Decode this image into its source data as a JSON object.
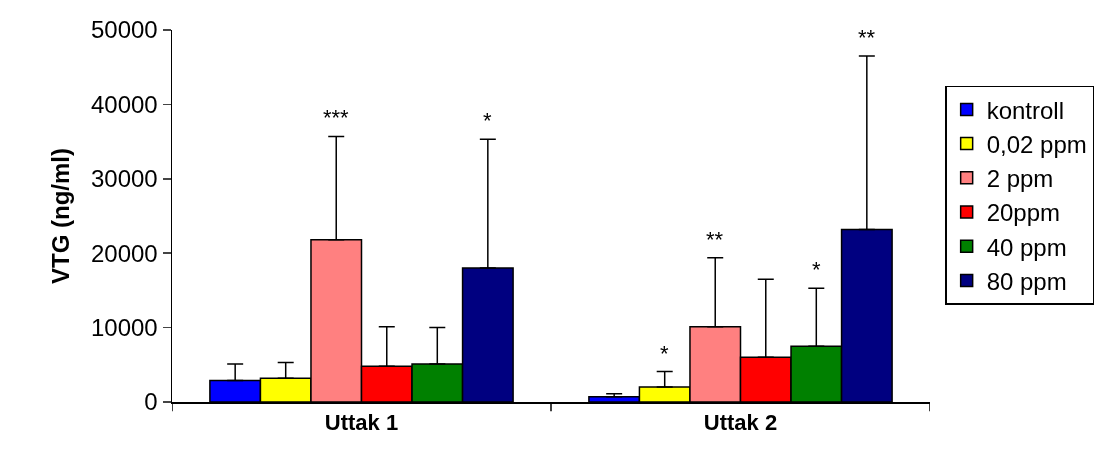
{
  "chart_data": {
    "type": "bar",
    "ylabel": "VTG (ng/ml)",
    "categories": [
      "Uttak 1",
      "Uttak 2"
    ],
    "ylim": [
      0,
      50000
    ],
    "yticks": [
      0,
      10000,
      20000,
      30000,
      40000,
      50000
    ],
    "grid": false,
    "legend": "right",
    "annotations": [
      "***",
      "*",
      "*",
      "**",
      "*",
      "**"
    ],
    "series": [
      {
        "name": "kontroll",
        "color": "#0000ff",
        "values": [
          2900,
          700
        ],
        "errors": [
          [
            2900,
            5100
          ],
          [
            700,
            1100
          ]
        ]
      },
      {
        "name": "0,02 ppm",
        "color": "#ffff00",
        "values": [
          3200,
          2000
        ],
        "errors": [
          [
            3200,
            5300
          ],
          [
            2000,
            4100
          ]
        ]
      },
      {
        "name": "2 ppm",
        "color": "#ff8080",
        "values": [
          21800,
          10100
        ],
        "errors": [
          [
            21800,
            35700
          ],
          [
            10100,
            19400
          ]
        ]
      },
      {
        "name": "20ppm",
        "color": "#ff0000",
        "values": [
          4800,
          6000
        ],
        "errors": [
          [
            4800,
            10100
          ],
          [
            6000,
            16500
          ]
        ]
      },
      {
        "name": "40 ppm",
        "color": "#008000",
        "values": [
          5100,
          7500
        ],
        "errors": [
          [
            5100,
            10000
          ],
          [
            7500,
            15300
          ]
        ]
      },
      {
        "name": "80 ppm",
        "color": "#000080",
        "values": [
          18000,
          23200
        ],
        "errors": [
          [
            18000,
            35300
          ],
          [
            23200,
            46500
          ]
        ]
      }
    ]
  }
}
